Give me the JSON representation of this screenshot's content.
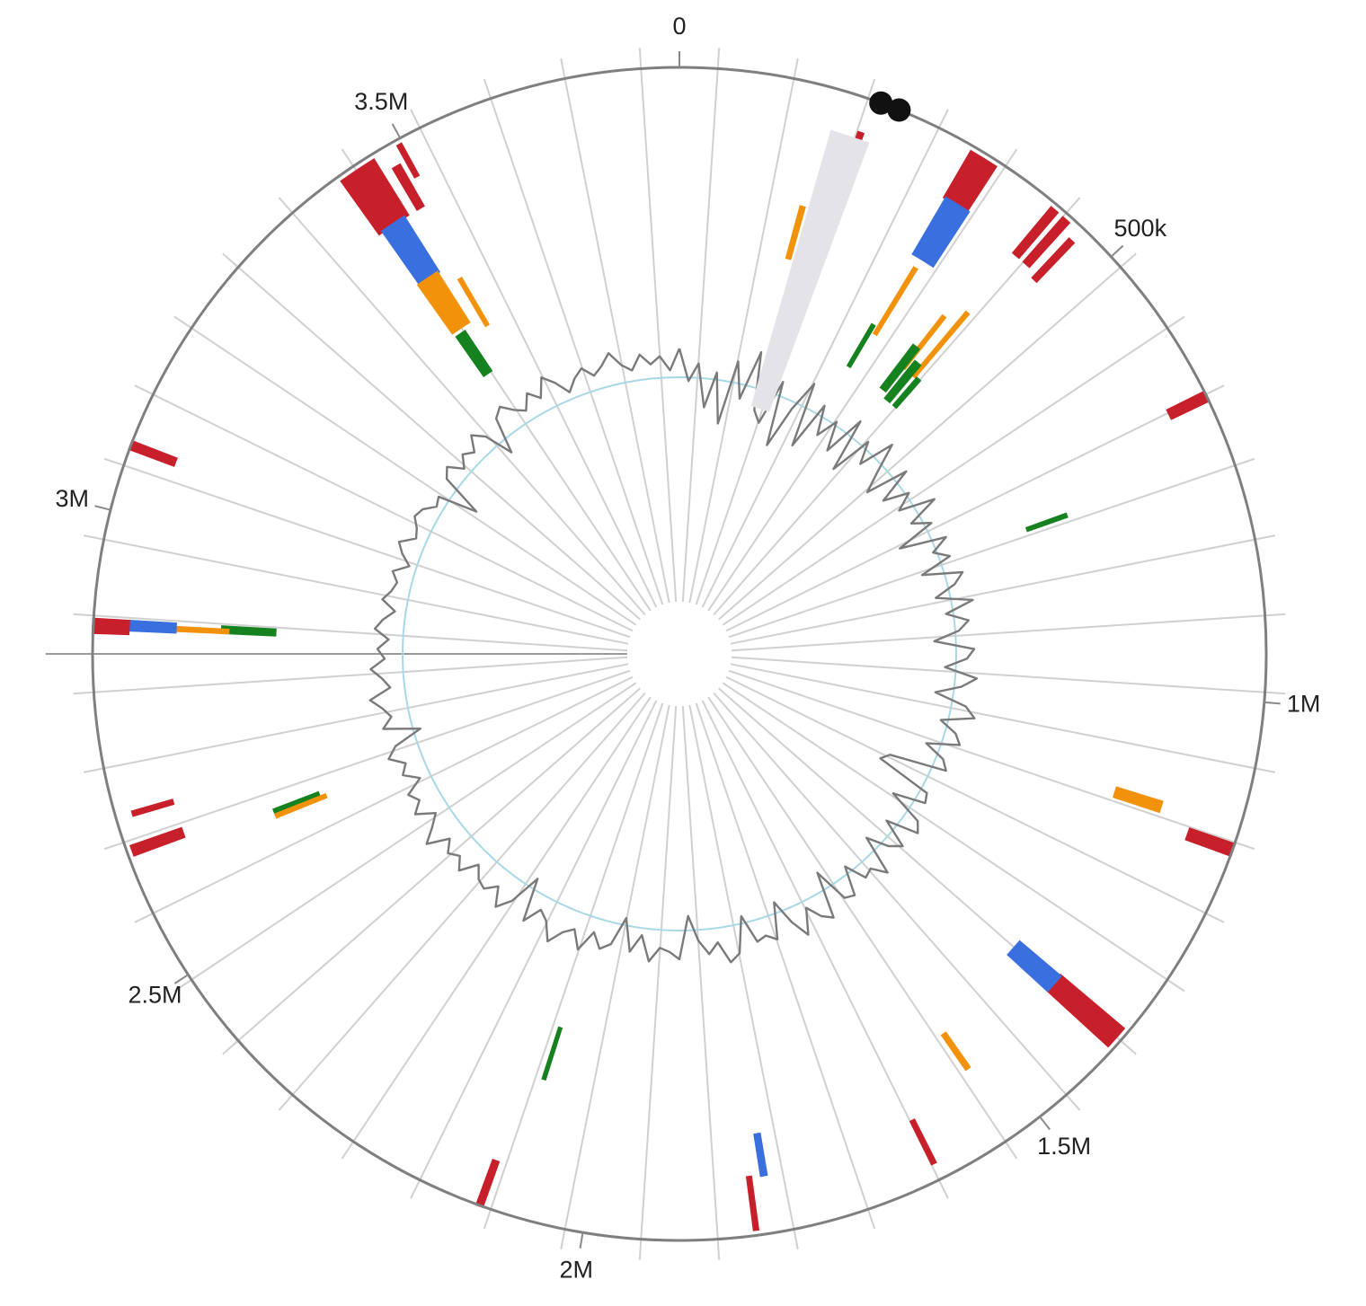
{
  "chart_data": {
    "type": "circular-genome",
    "genome_length": 3800000,
    "axis": {
      "ticks": [
        {
          "position": 0,
          "label": "0"
        },
        {
          "position": 500000,
          "label": "500k"
        },
        {
          "position": 1000000,
          "label": "1M"
        },
        {
          "position": 1500000,
          "label": "1.5M"
        },
        {
          "position": 2000000,
          "label": "2M"
        },
        {
          "position": 2500000,
          "label": "2.5M"
        },
        {
          "position": 3000000,
          "label": "3M"
        },
        {
          "position": 3500000,
          "label": "3.5M"
        }
      ]
    },
    "origin_markers": [
      {
        "position": 212000
      },
      {
        "position": 232000
      }
    ],
    "tracks": [
      {
        "name": "red",
        "color": "#c8202a"
      },
      {
        "name": "blue",
        "color": "#3a6fe0"
      },
      {
        "name": "orange",
        "color": "#f2920a"
      },
      {
        "name": "green",
        "color": "#15821f"
      }
    ],
    "features": [
      {
        "track": "red",
        "start": 200000,
        "end": 205000,
        "r1": 0.88,
        "r2": 0.94
      },
      {
        "track": "orange",
        "start": 160000,
        "end": 165000,
        "r1": 0.7,
        "r2": 0.79
      },
      {
        "track": "red",
        "start": 318000,
        "end": 348000,
        "r1": 0.9,
        "r2": 0.99
      },
      {
        "track": "blue",
        "start": 320000,
        "end": 350000,
        "r1": 0.79,
        "r2": 0.9
      },
      {
        "track": "orange",
        "start": 330000,
        "end": 334000,
        "r1": 0.64,
        "r2": 0.77
      },
      {
        "track": "green",
        "start": 320000,
        "end": 324000,
        "r1": 0.57,
        "r2": 0.65
      },
      {
        "track": "red",
        "start": 420000,
        "end": 428000,
        "r1": 0.89,
        "r2": 0.99
      },
      {
        "track": "red",
        "start": 436000,
        "end": 444000,
        "r1": 0.89,
        "r2": 0.99
      },
      {
        "track": "red",
        "start": 456000,
        "end": 462000,
        "r1": 0.88,
        "r2": 0.97
      },
      {
        "track": "orange",
        "start": 400000,
        "end": 404000,
        "r1": 0.62,
        "r2": 0.73
      },
      {
        "track": "orange",
        "start": 422000,
        "end": 426000,
        "r1": 0.62,
        "r2": 0.76
      },
      {
        "track": "green",
        "start": 392000,
        "end": 402000,
        "r1": 0.57,
        "r2": 0.66
      },
      {
        "track": "green",
        "start": 410000,
        "end": 420000,
        "r1": 0.56,
        "r2": 0.64
      },
      {
        "track": "green",
        "start": 430000,
        "end": 436000,
        "r1": 0.56,
        "r2": 0.62
      },
      {
        "track": "red",
        "start": 670000,
        "end": 680000,
        "r1": 0.93,
        "r2": 1.0
      },
      {
        "track": "green",
        "start": 740000,
        "end": 744000,
        "r1": 0.63,
        "r2": 0.7
      },
      {
        "track": "orange",
        "start": 1130000,
        "end": 1142000,
        "r1": 0.78,
        "r2": 0.86
      },
      {
        "track": "red",
        "start": 1150000,
        "end": 1162000,
        "r1": 0.92,
        "r2": 1.0
      },
      {
        "track": "red",
        "start": 1374000,
        "end": 1398000,
        "r1": 0.85,
        "r2": 0.99
      },
      {
        "track": "blue",
        "start": 1375000,
        "end": 1398000,
        "r1": 0.76,
        "r2": 0.85
      },
      {
        "track": "orange",
        "start": 1530000,
        "end": 1535000,
        "r1": 0.79,
        "r2": 0.86
      },
      {
        "track": "red",
        "start": 1618000,
        "end": 1622000,
        "r1": 0.89,
        "r2": 0.97
      },
      {
        "track": "blue",
        "start": 1800000,
        "end": 1806000,
        "r1": 0.83,
        "r2": 0.9
      },
      {
        "track": "red",
        "start": 1818000,
        "end": 1822000,
        "r1": 0.9,
        "r2": 0.99
      },
      {
        "track": "green",
        "start": 2085000,
        "end": 2088000,
        "r1": 0.67,
        "r2": 0.76
      },
      {
        "track": "red",
        "start": 2107000,
        "end": 2113000,
        "r1": 0.92,
        "r2": 1.0
      },
      {
        "track": "green",
        "start": 2620000,
        "end": 2628000,
        "r1": 0.66,
        "r2": 0.74
      },
      {
        "track": "orange",
        "start": 2617000,
        "end": 2621000,
        "r1": 0.65,
        "r2": 0.74
      },
      {
        "track": "red",
        "start": 2636000,
        "end": 2646000,
        "r1": 0.9,
        "r2": 0.99
      },
      {
        "track": "red",
        "start": 2676000,
        "end": 2680000,
        "r1": 0.9,
        "r2": 0.97
      },
      {
        "track": "green",
        "start": 2878000,
        "end": 2886000,
        "r1": 0.69,
        "r2": 0.78
      },
      {
        "track": "orange",
        "start": 2878000,
        "end": 2882000,
        "r1": 0.77,
        "r2": 0.86
      },
      {
        "track": "blue",
        "start": 2876000,
        "end": 2886000,
        "r1": 0.86,
        "r2": 0.94
      },
      {
        "track": "red",
        "start": 2872000,
        "end": 2886000,
        "r1": 0.94,
        "r2": 1.0
      },
      {
        "track": "red",
        "start": 3066000,
        "end": 3074000,
        "r1": 0.92,
        "r2": 1.0
      },
      {
        "track": "red",
        "start": 3425000,
        "end": 3465000,
        "r1": 0.88,
        "r2": 0.99
      },
      {
        "track": "blue",
        "start": 3430000,
        "end": 3460000,
        "r1": 0.77,
        "r2": 0.88
      },
      {
        "track": "orange",
        "start": 3428000,
        "end": 3458000,
        "r1": 0.67,
        "r2": 0.77
      },
      {
        "track": "green",
        "start": 3430000,
        "end": 3445000,
        "r1": 0.58,
        "r2": 0.66
      },
      {
        "track": "orange",
        "start": 3478000,
        "end": 3482000,
        "r1": 0.65,
        "r2": 0.74
      },
      {
        "track": "red",
        "start": 3478000,
        "end": 3486000,
        "r1": 0.88,
        "r2": 0.96
      },
      {
        "track": "red",
        "start": 3494000,
        "end": 3498000,
        "r1": 0.93,
        "r2": 0.99
      }
    ],
    "gc_track": {
      "color": "#7a7a7a",
      "baseline_color": "#a8d8e6",
      "window": 20000,
      "deviation_from_mean": [
        0.4,
        -0.05,
        0.2,
        -0.4,
        0.1,
        -0.6,
        0.3,
        -0.2,
        0.5,
        -0.3,
        -0.45,
        0.2,
        -0.7,
        -0.1,
        0.35,
        -0.55,
        0.15,
        -0.25,
        0.05,
        -0.35,
        0.25,
        -0.5,
        0.1,
        -0.2,
        0.3,
        -0.1,
        -0.4,
        0.2,
        -0.3,
        0.05,
        -0.2,
        0.3,
        -0.15,
        0.1,
        -0.45,
        0.2,
        -0.05,
        0.15,
        -0.3,
        0.25,
        0.1,
        -0.2,
        0.3,
        -0.1,
        0.2,
        0.05,
        -0.3,
        0.25,
        0.15,
        -0.15,
        0.3,
        0.1,
        -0.25,
        0.2,
        0.35,
        -0.1,
        0.15,
        0.25,
        -0.2,
        0.1,
        0.2,
        -0.6,
        -0.7,
        0.1,
        0.15,
        -0.3,
        0.2,
        0.3,
        -0.15,
        0.25,
        0.1,
        -0.2,
        0.35,
        0.15,
        0.2,
        -0.1,
        0.3,
        0.25,
        -0.25,
        0.4,
        0.3,
        0.1,
        0.45,
        0.2,
        -0.15,
        0.35,
        0.25,
        0.3,
        -0.1,
        0.4,
        0.5,
        0.2,
        0.35,
        0.15,
        -0.2,
        0.4,
        0.3,
        0.25,
        0.45,
        0.1,
        0.35,
        -0.1,
        0.3,
        0.4,
        0.2,
        0.5,
        0.25,
        0.35,
        0.55,
        0.3,
        0.2,
        0.45,
        -0.15,
        0.3,
        0.5,
        0.25,
        0.4,
        0.35,
        0.2,
        0.45,
        0.3,
        0.4,
        0.25,
        0.55,
        0.35,
        0.2,
        0.45,
        0.3,
        0.4,
        0.15,
        0.35,
        0.25,
        0.45,
        0.3,
        -0.1,
        0.4,
        0.25,
        0.35,
        0.5,
        0.2,
        0.3,
        0.45,
        0.25,
        0.35,
        0.2,
        0.4,
        0.3,
        0.15,
        0.35,
        0.25,
        0.2,
        0.3,
        0.1,
        0.25,
        0.35,
        0.15,
        0.2,
        0.3,
        0.25,
        0.1,
        0.15,
        -0.4,
        0.2,
        0.3,
        0.1,
        0.25,
        0.15,
        0.35,
        0.2,
        -0.2,
        0.3,
        0.4,
        0.25,
        0.15,
        0.35,
        0.2,
        0.45,
        0.3,
        0.1,
        0.25,
        0.35,
        0.2,
        0.3,
        0.45,
        0.25,
        0.15,
        0.35,
        0.2,
        0.3,
        0.1
      ]
    }
  }
}
